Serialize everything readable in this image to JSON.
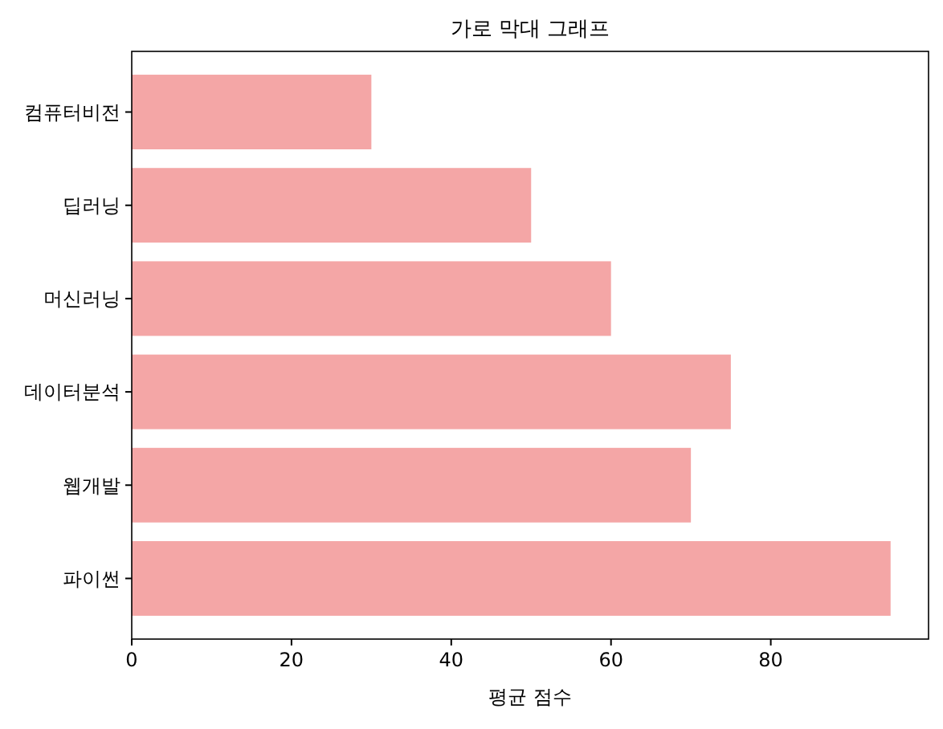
{
  "chart_data": {
    "type": "bar",
    "orientation": "horizontal",
    "title": "가로 막대 그래프",
    "xlabel": "평균 점수",
    "categories": [
      "컴퓨터비전",
      "딥러닝",
      "머신러닝",
      "데이터분석",
      "웹개발",
      "파이썬"
    ],
    "values": [
      30,
      50,
      60,
      75,
      70,
      95
    ],
    "color": "#f4a6a6",
    "xlim": [
      0,
      99.75
    ],
    "xticks": [
      0,
      20,
      40,
      60,
      80
    ]
  }
}
